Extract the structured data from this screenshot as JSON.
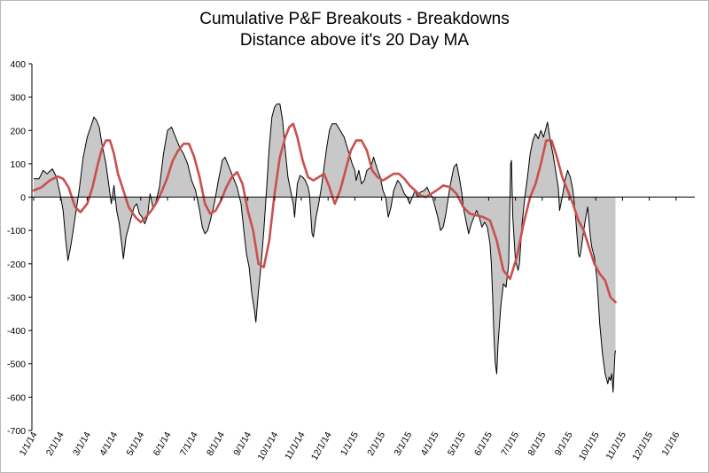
{
  "chart_data": {
    "type": "area",
    "title": "Cumulative P&F Breakouts - Breakdowns",
    "subtitle": "Distance above it's 20 Day MA",
    "xlabel": "",
    "ylabel": "",
    "ylim": [
      -700,
      400
    ],
    "y_ticks": [
      400,
      300,
      200,
      100,
      0,
      -100,
      -200,
      -300,
      -400,
      -500,
      -600,
      -700
    ],
    "x_ticks": [
      "1/1/14",
      "2/1/14",
      "3/1/14",
      "4/1/14",
      "5/1/14",
      "6/1/14",
      "7/1/14",
      "8/1/14",
      "9/1/14",
      "10/1/14",
      "11/1/14",
      "12/1/14",
      "1/1/15",
      "2/1/15",
      "3/1/15",
      "4/1/15",
      "5/1/15",
      "6/1/15",
      "7/1/15",
      "8/1/15",
      "9/1/15",
      "10/1/15",
      "11/1/15",
      "12/1/15",
      "1/1/16"
    ],
    "grid": false,
    "series": [
      {
        "name": "Distance above 20 Day MA",
        "style": "black line, gray fill to zero",
        "color": "#000000",
        "fill": "#c8c8c8",
        "points": [
          [
            0.0,
            55
          ],
          [
            0.2,
            55
          ],
          [
            0.35,
            80
          ],
          [
            0.5,
            70
          ],
          [
            0.7,
            85
          ],
          [
            0.85,
            60
          ],
          [
            1.0,
            5
          ],
          [
            1.1,
            -40
          ],
          [
            1.2,
            -130
          ],
          [
            1.28,
            -190
          ],
          [
            1.4,
            -140
          ],
          [
            1.55,
            -60
          ],
          [
            1.7,
            20
          ],
          [
            1.85,
            120
          ],
          [
            2.0,
            180
          ],
          [
            2.15,
            215
          ],
          [
            2.25,
            240
          ],
          [
            2.35,
            230
          ],
          [
            2.45,
            210
          ],
          [
            2.55,
            160
          ],
          [
            2.7,
            100
          ],
          [
            2.8,
            40
          ],
          [
            2.9,
            -20
          ],
          [
            3.0,
            35
          ],
          [
            3.1,
            -40
          ],
          [
            3.2,
            -80
          ],
          [
            3.3,
            -150
          ],
          [
            3.35,
            -185
          ],
          [
            3.45,
            -120
          ],
          [
            3.55,
            -90
          ],
          [
            3.65,
            -60
          ],
          [
            3.75,
            -30
          ],
          [
            3.85,
            -20
          ],
          [
            3.95,
            -50
          ],
          [
            4.05,
            -60
          ],
          [
            4.15,
            -80
          ],
          [
            4.25,
            -60
          ],
          [
            4.35,
            10
          ],
          [
            4.45,
            -30
          ],
          [
            4.55,
            -20
          ],
          [
            4.7,
            30
          ],
          [
            4.85,
            130
          ],
          [
            5.0,
            200
          ],
          [
            5.15,
            210
          ],
          [
            5.3,
            180
          ],
          [
            5.45,
            150
          ],
          [
            5.6,
            130
          ],
          [
            5.75,
            100
          ],
          [
            5.9,
            50
          ],
          [
            6.05,
            20
          ],
          [
            6.1,
            0
          ],
          [
            6.2,
            -40
          ],
          [
            6.3,
            -90
          ],
          [
            6.4,
            -110
          ],
          [
            6.5,
            -100
          ],
          [
            6.6,
            -70
          ],
          [
            6.75,
            -20
          ],
          [
            6.9,
            50
          ],
          [
            7.05,
            110
          ],
          [
            7.15,
            120
          ],
          [
            7.3,
            90
          ],
          [
            7.45,
            60
          ],
          [
            7.6,
            30
          ],
          [
            7.75,
            -20
          ],
          [
            7.85,
            -100
          ],
          [
            7.95,
            -170
          ],
          [
            8.05,
            -210
          ],
          [
            8.15,
            -290
          ],
          [
            8.25,
            -340
          ],
          [
            8.3,
            -375
          ],
          [
            8.4,
            -280
          ],
          [
            8.5,
            -200
          ],
          [
            8.6,
            -100
          ],
          [
            8.7,
            20
          ],
          [
            8.8,
            150
          ],
          [
            8.9,
            240
          ],
          [
            9.0,
            270
          ],
          [
            9.1,
            280
          ],
          [
            9.2,
            280
          ],
          [
            9.3,
            230
          ],
          [
            9.4,
            140
          ],
          [
            9.5,
            60
          ],
          [
            9.6,
            20
          ],
          [
            9.7,
            -20
          ],
          [
            9.75,
            -60
          ],
          [
            9.85,
            40
          ],
          [
            9.95,
            65
          ],
          [
            10.05,
            60
          ],
          [
            10.15,
            50
          ],
          [
            10.25,
            30
          ],
          [
            10.3,
            10
          ],
          [
            10.35,
            -50
          ],
          [
            10.4,
            -110
          ],
          [
            10.45,
            -120
          ],
          [
            10.55,
            -60
          ],
          [
            10.65,
            -20
          ],
          [
            10.75,
            30
          ],
          [
            10.85,
            90
          ],
          [
            10.95,
            150
          ],
          [
            11.05,
            200
          ],
          [
            11.15,
            220
          ],
          [
            11.3,
            220
          ],
          [
            11.45,
            200
          ],
          [
            11.6,
            180
          ],
          [
            11.75,
            140
          ],
          [
            11.9,
            100
          ],
          [
            12.0,
            80
          ],
          [
            12.05,
            50
          ],
          [
            12.15,
            80
          ],
          [
            12.25,
            40
          ],
          [
            12.35,
            50
          ],
          [
            12.45,
            80
          ],
          [
            12.6,
            90
          ],
          [
            12.7,
            120
          ],
          [
            12.85,
            80
          ],
          [
            12.95,
            60
          ],
          [
            13.05,
            20
          ],
          [
            13.15,
            0
          ],
          [
            13.25,
            -60
          ],
          [
            13.35,
            -30
          ],
          [
            13.45,
            20
          ],
          [
            13.6,
            50
          ],
          [
            13.7,
            40
          ],
          [
            13.85,
            10
          ],
          [
            13.95,
            0
          ],
          [
            14.05,
            -20
          ],
          [
            14.15,
            0
          ],
          [
            14.25,
            20
          ],
          [
            14.35,
            0
          ],
          [
            14.45,
            15
          ],
          [
            14.6,
            20
          ],
          [
            14.7,
            30
          ],
          [
            14.8,
            10
          ],
          [
            14.9,
            0
          ],
          [
            15.0,
            -30
          ],
          [
            15.1,
            -60
          ],
          [
            15.2,
            -100
          ],
          [
            15.3,
            -90
          ],
          [
            15.4,
            -50
          ],
          [
            15.55,
            30
          ],
          [
            15.7,
            90
          ],
          [
            15.8,
            100
          ],
          [
            15.9,
            60
          ],
          [
            16.0,
            10
          ],
          [
            16.05,
            -30
          ],
          [
            16.15,
            -70
          ],
          [
            16.25,
            -110
          ],
          [
            16.35,
            -80
          ],
          [
            16.45,
            -60
          ],
          [
            16.55,
            -40
          ],
          [
            16.65,
            -60
          ],
          [
            16.75,
            -90
          ],
          [
            16.85,
            -75
          ],
          [
            16.95,
            -90
          ],
          [
            17.05,
            -140
          ],
          [
            17.1,
            -200
          ],
          [
            17.15,
            -300
          ],
          [
            17.2,
            -420
          ],
          [
            17.25,
            -500
          ],
          [
            17.3,
            -530
          ],
          [
            17.35,
            -440
          ],
          [
            17.45,
            -330
          ],
          [
            17.55,
            -260
          ],
          [
            17.65,
            -270
          ],
          [
            17.75,
            -200
          ],
          [
            17.82,
            100
          ],
          [
            17.85,
            110
          ],
          [
            17.9,
            -60
          ],
          [
            18.0,
            -190
          ],
          [
            18.1,
            -220
          ],
          [
            18.15,
            -200
          ],
          [
            18.25,
            -80
          ],
          [
            18.35,
            0
          ],
          [
            18.45,
            60
          ],
          [
            18.55,
            130
          ],
          [
            18.65,
            170
          ],
          [
            18.75,
            190
          ],
          [
            18.85,
            175
          ],
          [
            18.95,
            200
          ],
          [
            19.05,
            180
          ],
          [
            19.15,
            210
          ],
          [
            19.2,
            225
          ],
          [
            19.3,
            170
          ],
          [
            19.4,
            130
          ],
          [
            19.5,
            80
          ],
          [
            19.6,
            30
          ],
          [
            19.65,
            -40
          ],
          [
            19.75,
            0
          ],
          [
            19.85,
            50
          ],
          [
            19.95,
            80
          ],
          [
            20.05,
            60
          ],
          [
            20.15,
            20
          ],
          [
            20.25,
            -60
          ],
          [
            20.35,
            -170
          ],
          [
            20.4,
            -180
          ],
          [
            20.45,
            -160
          ],
          [
            20.55,
            -100
          ],
          [
            20.65,
            -50
          ],
          [
            20.7,
            -30
          ],
          [
            20.8,
            -120
          ],
          [
            20.85,
            -150
          ],
          [
            20.95,
            -180
          ],
          [
            21.05,
            -250
          ],
          [
            21.15,
            -380
          ],
          [
            21.25,
            -470
          ],
          [
            21.35,
            -530
          ],
          [
            21.45,
            -560
          ],
          [
            21.5,
            -540
          ],
          [
            21.55,
            -550
          ],
          [
            21.6,
            -530
          ],
          [
            21.65,
            -585
          ],
          [
            21.72,
            -470
          ],
          [
            21.74,
            -460
          ]
        ]
      },
      {
        "name": "20 Day MA",
        "style": "red line",
        "color": "#c9504f",
        "points": [
          [
            0.0,
            20
          ],
          [
            0.3,
            30
          ],
          [
            0.6,
            50
          ],
          [
            0.9,
            62
          ],
          [
            1.1,
            55
          ],
          [
            1.3,
            30
          ],
          [
            1.55,
            -30
          ],
          [
            1.75,
            -45
          ],
          [
            2.0,
            -20
          ],
          [
            2.2,
            30
          ],
          [
            2.4,
            100
          ],
          [
            2.55,
            145
          ],
          [
            2.7,
            170
          ],
          [
            2.85,
            170
          ],
          [
            3.0,
            130
          ],
          [
            3.15,
            70
          ],
          [
            3.35,
            20
          ],
          [
            3.55,
            -30
          ],
          [
            3.8,
            -60
          ],
          [
            4.0,
            -75
          ],
          [
            4.2,
            -60
          ],
          [
            4.4,
            -40
          ],
          [
            4.6,
            -15
          ],
          [
            4.8,
            20
          ],
          [
            5.0,
            60
          ],
          [
            5.2,
            110
          ],
          [
            5.4,
            140
          ],
          [
            5.6,
            160
          ],
          [
            5.8,
            160
          ],
          [
            6.0,
            120
          ],
          [
            6.2,
            60
          ],
          [
            6.4,
            -20
          ],
          [
            6.6,
            -50
          ],
          [
            6.8,
            -40
          ],
          [
            7.0,
            -10
          ],
          [
            7.2,
            30
          ],
          [
            7.4,
            60
          ],
          [
            7.6,
            75
          ],
          [
            7.8,
            40
          ],
          [
            8.0,
            -40
          ],
          [
            8.2,
            -100
          ],
          [
            8.4,
            -200
          ],
          [
            8.6,
            -210
          ],
          [
            8.8,
            -130
          ],
          [
            9.0,
            10
          ],
          [
            9.2,
            120
          ],
          [
            9.4,
            180
          ],
          [
            9.55,
            210
          ],
          [
            9.7,
            220
          ],
          [
            9.85,
            180
          ],
          [
            10.05,
            110
          ],
          [
            10.25,
            60
          ],
          [
            10.45,
            50
          ],
          [
            10.65,
            60
          ],
          [
            10.85,
            70
          ],
          [
            11.05,
            30
          ],
          [
            11.25,
            -20
          ],
          [
            11.45,
            20
          ],
          [
            11.65,
            80
          ],
          [
            11.85,
            140
          ],
          [
            12.05,
            170
          ],
          [
            12.25,
            170
          ],
          [
            12.45,
            140
          ],
          [
            12.65,
            80
          ],
          [
            12.85,
            60
          ],
          [
            13.05,
            50
          ],
          [
            13.25,
            60
          ],
          [
            13.45,
            70
          ],
          [
            13.65,
            70
          ],
          [
            13.85,
            55
          ],
          [
            14.05,
            35
          ],
          [
            14.25,
            20
          ],
          [
            14.45,
            5
          ],
          [
            14.65,
            0
          ],
          [
            14.85,
            10
          ],
          [
            15.05,
            20
          ],
          [
            15.3,
            35
          ],
          [
            15.55,
            30
          ],
          [
            15.8,
            10
          ],
          [
            16.05,
            -30
          ],
          [
            16.3,
            -50
          ],
          [
            16.55,
            -55
          ],
          [
            16.8,
            -60
          ],
          [
            17.05,
            -70
          ],
          [
            17.3,
            -130
          ],
          [
            17.55,
            -220
          ],
          [
            17.8,
            -245
          ],
          [
            18.05,
            -180
          ],
          [
            18.3,
            -80
          ],
          [
            18.55,
            0
          ],
          [
            18.75,
            40
          ],
          [
            18.95,
            100
          ],
          [
            19.15,
            170
          ],
          [
            19.35,
            170
          ],
          [
            19.55,
            120
          ],
          [
            19.75,
            60
          ],
          [
            19.95,
            20
          ],
          [
            20.15,
            -20
          ],
          [
            20.35,
            -70
          ],
          [
            20.55,
            -100
          ],
          [
            20.75,
            -150
          ],
          [
            20.95,
            -200
          ],
          [
            21.15,
            -230
          ],
          [
            21.35,
            -250
          ],
          [
            21.55,
            -300
          ],
          [
            21.74,
            -315
          ]
        ]
      }
    ]
  }
}
